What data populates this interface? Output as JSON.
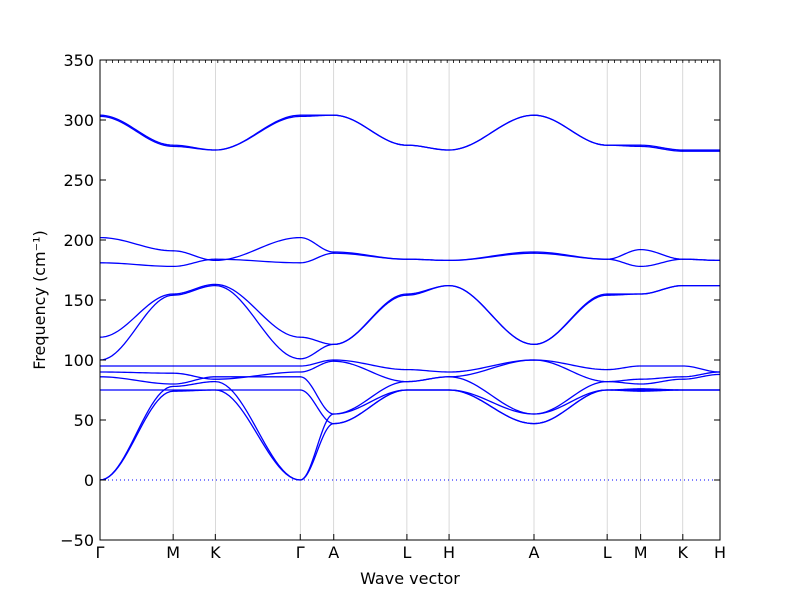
{
  "chart_data": {
    "type": "line",
    "title": "",
    "xlabel": "Wave vector",
    "ylabel": "Frequency (cm⁻¹)",
    "ylim": [
      -50,
      350
    ],
    "yticks": [
      -50,
      0,
      50,
      100,
      150,
      200,
      250,
      300,
      350
    ],
    "xticks": [
      {
        "label": "Γ",
        "x": 0.0
      },
      {
        "label": "M",
        "x": 0.118
      },
      {
        "label": "K",
        "x": 0.186
      },
      {
        "label": "Γ",
        "x": 0.323
      },
      {
        "label": "A",
        "x": 0.377
      },
      {
        "label": "L",
        "x": 0.495
      },
      {
        "label": "H",
        "x": 0.563
      },
      {
        "label": "A",
        "x": 0.7
      },
      {
        "label": "L",
        "x": 0.818
      },
      {
        "label": "M",
        "x": 0.872
      },
      {
        "label": "K",
        "x": 0.94
      },
      {
        "label": "H",
        "x": 1.0
      }
    ],
    "xlim": [
      0,
      1
    ],
    "zero_line": {
      "y": 0,
      "style": "dotted"
    },
    "line_color": "#0000ff",
    "series": [
      {
        "x": [
          0,
          0.118,
          0.186,
          0.323,
          0.377,
          0.495,
          0.563,
          0.7,
          0.818,
          0.872,
          0.94,
          1.0
        ],
        "values": [
          304,
          279,
          275,
          304,
          304,
          279,
          275,
          304,
          279,
          279,
          275,
          275
        ]
      },
      {
        "x": [
          0,
          0.118,
          0.186,
          0.323,
          0.377,
          0.495,
          0.563,
          0.7,
          0.818,
          0.872,
          0.94,
          1.0
        ],
        "values": [
          303,
          278,
          275,
          303,
          304,
          279,
          275,
          304,
          279,
          278,
          274,
          274
        ]
      },
      {
        "x": [
          0,
          0.118,
          0.186,
          0.323,
          0.377,
          0.495,
          0.563,
          0.7,
          0.818,
          0.872,
          0.94,
          1.0
        ],
        "values": [
          202,
          191,
          183,
          202,
          190,
          184,
          183,
          190,
          184,
          192,
          184,
          183
        ]
      },
      {
        "x": [
          0,
          0.118,
          0.186,
          0.323,
          0.377,
          0.495,
          0.563,
          0.7,
          0.818,
          0.872,
          0.94,
          1.0
        ],
        "values": [
          181,
          178,
          184,
          181,
          189,
          184,
          183,
          189,
          184,
          178,
          184,
          183
        ]
      },
      {
        "x": [
          0,
          0.118,
          0.186,
          0.323,
          0.377,
          0.495,
          0.563,
          0.7,
          0.818,
          0.872,
          0.94,
          1.0
        ],
        "values": [
          119,
          155,
          163,
          119,
          113,
          155,
          162,
          113,
          155,
          155,
          162,
          162
        ]
      },
      {
        "x": [
          0,
          0.118,
          0.186,
          0.323,
          0.377,
          0.495,
          0.563,
          0.7,
          0.818,
          0.872,
          0.94,
          1.0
        ],
        "values": [
          100,
          154,
          162,
          101,
          113,
          154,
          162,
          113,
          154,
          155,
          162,
          162
        ]
      },
      {
        "x": [
          0,
          0.118,
          0.186,
          0.323,
          0.377,
          0.495,
          0.563,
          0.7,
          0.818,
          0.872,
          0.94,
          1.0
        ],
        "values": [
          95,
          95,
          95,
          95,
          100,
          92,
          90,
          100,
          92,
          95,
          95,
          90
        ]
      },
      {
        "x": [
          0,
          0.118,
          0.186,
          0.323,
          0.377,
          0.495,
          0.563,
          0.7,
          0.818,
          0.872,
          0.94,
          1.0
        ],
        "values": [
          90,
          89,
          84,
          90,
          99,
          82,
          86,
          100,
          82,
          80,
          84,
          88
        ]
      },
      {
        "x": [
          0,
          0.118,
          0.186,
          0.323,
          0.377,
          0.495,
          0.563,
          0.7,
          0.818,
          0.872,
          0.94,
          1.0
        ],
        "values": [
          86,
          80,
          86,
          86,
          55,
          82,
          86,
          55,
          82,
          84,
          86,
          90
        ]
      },
      {
        "x": [
          0,
          0.118,
          0.186,
          0.323,
          0.377,
          0.495,
          0.563,
          0.7,
          0.818,
          0.872,
          0.94,
          1.0
        ],
        "values": [
          75,
          75,
          75,
          75,
          47,
          75,
          75,
          47,
          75,
          75,
          75,
          75
        ]
      },
      {
        "x": [
          0,
          0.118,
          0.186,
          0.323,
          0.377,
          0.495,
          0.563,
          0.7,
          0.818,
          0.872,
          0.94,
          1.0
        ],
        "values": [
          0,
          78,
          82,
          0,
          55,
          75,
          75,
          55,
          75,
          76,
          75,
          75
        ]
      },
      {
        "x": [
          0,
          0.118,
          0.186,
          0.323,
          0.377,
          0.495,
          0.563,
          0.7,
          0.818,
          0.872,
          0.94,
          1.0
        ],
        "values": [
          0,
          74,
          75,
          0,
          47,
          75,
          75,
          47,
          75,
          74,
          75,
          75
        ]
      }
    ]
  }
}
